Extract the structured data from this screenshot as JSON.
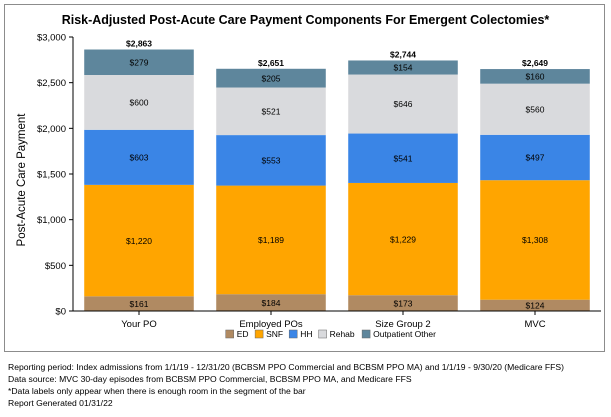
{
  "chart_data": {
    "type": "stacked-bar",
    "title": "Risk-Adjusted Post-Acute Care Payment Components For Emergent Colectomies*",
    "ylabel": "Post-Acute Care Payment",
    "xlabel": "",
    "ylim": [
      0,
      3000
    ],
    "yticks": [
      0,
      500,
      1000,
      1500,
      2000,
      2500,
      3000
    ],
    "ytick_labels": [
      "$0",
      "$500",
      "$1,000",
      "$1,500",
      "$2,000",
      "$2,500",
      "$3,000"
    ],
    "grid": false,
    "legend_position": "bottom",
    "categories": [
      "Your PO",
      "Employed POs",
      "Size Group 2",
      "MVC"
    ],
    "totals": [
      2863,
      2651,
      2744,
      2649
    ],
    "total_labels": [
      "$2,863",
      "$2,651",
      "$2,744",
      "$2,649"
    ],
    "series": [
      {
        "name": "ED",
        "color": "#b08a62",
        "values": [
          161,
          184,
          173,
          124
        ],
        "labels": [
          "$161",
          "$184",
          "$173",
          "$124"
        ]
      },
      {
        "name": "SNF",
        "color": "#ffa500",
        "values": [
          1220,
          1189,
          1229,
          1308
        ],
        "labels": [
          "$1,220",
          "$1,189",
          "$1,229",
          "$1,308"
        ]
      },
      {
        "name": "HH",
        "color": "#3a85e6",
        "values": [
          603,
          553,
          541,
          497
        ],
        "labels": [
          "$603",
          "$553",
          "$541",
          "$497"
        ]
      },
      {
        "name": "Rehab",
        "color": "#d9dadd",
        "values": [
          600,
          521,
          646,
          560
        ],
        "labels": [
          "$600",
          "$521",
          "$646",
          "$560"
        ]
      },
      {
        "name": "Outpatient Other",
        "color": "#5e869c",
        "values": [
          279,
          205,
          154,
          160
        ],
        "labels": [
          "$279",
          "$205",
          "$154",
          "$160"
        ]
      }
    ]
  },
  "footnotes": [
    "Reporting period: Index admissions from 1/1/19 - 12/31/20 (BCBSM PPO Commercial and BCBSM PPO MA) and 1/1/19 - 9/30/20 (Medicare FFS)",
    "Data source: MVC 30-day episodes from BCBSM PPO Commercial, BCBSM PPO MA, and Medicare FFS",
    "*Data labels only appear when there is enough room in the segment of the bar",
    "Report Generated 01/31/22"
  ]
}
